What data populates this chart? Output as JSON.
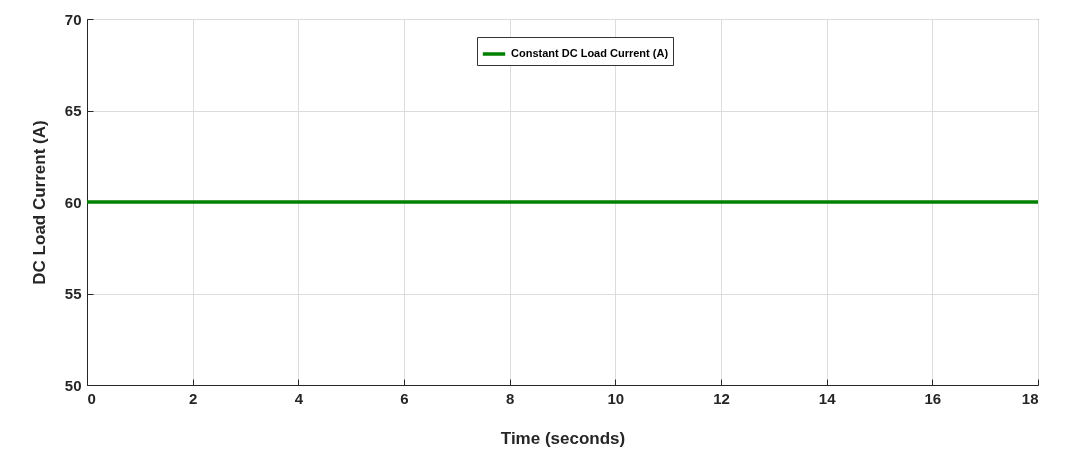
{
  "chart_data": {
    "type": "line",
    "xlabel": "Time (seconds)",
    "ylabel": "DC Load Current (A)",
    "x": [
      0,
      18
    ],
    "series": [
      {
        "name": "Constant DC Load Current (A)",
        "color": "#008000",
        "values": [
          60,
          60
        ]
      }
    ],
    "xlim": [
      0,
      18
    ],
    "xticks": [
      0,
      2,
      4,
      6,
      8,
      10,
      12,
      14,
      16,
      18
    ],
    "ylim": [
      50,
      70
    ],
    "yticks": [
      50,
      55,
      60,
      65,
      70
    ],
    "grid": true,
    "legend": "top",
    "line_style": "solid",
    "marker": "none"
  }
}
